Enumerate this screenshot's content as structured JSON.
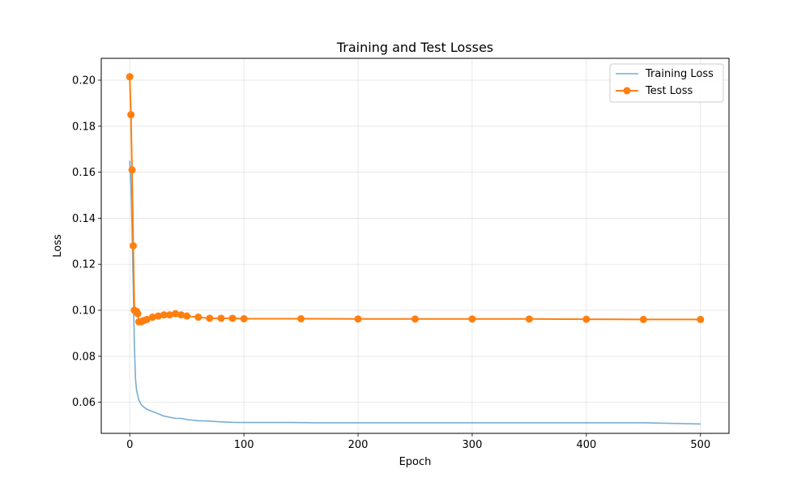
{
  "chart_data": {
    "type": "line",
    "title": "Training and Test Losses",
    "xlabel": "Epoch",
    "ylabel": "Loss",
    "xlim": [
      -25,
      525
    ],
    "ylim": [
      0.0465,
      0.2095
    ],
    "xticks": [
      0,
      100,
      200,
      300,
      400,
      500
    ],
    "yticks": [
      0.06,
      0.08,
      0.1,
      0.12,
      0.14,
      0.16,
      0.18,
      0.2
    ],
    "ytick_labels": [
      "0.06",
      "0.08",
      "0.10",
      "0.12",
      "0.14",
      "0.16",
      "0.18",
      "0.20"
    ],
    "grid": true,
    "legend_position": "top-right",
    "series": [
      {
        "name": "Training Loss",
        "color": "#1f77b4",
        "alpha": 0.6,
        "marker": "none",
        "x": [
          0,
          1,
          2,
          3,
          4,
          5,
          6,
          7,
          8,
          10,
          12,
          15,
          20,
          25,
          30,
          35,
          40,
          45,
          50,
          60,
          70,
          80,
          90,
          100,
          120,
          140,
          160,
          180,
          200,
          250,
          300,
          350,
          400,
          450,
          500
        ],
        "y": [
          0.165,
          0.155,
          0.135,
          0.11,
          0.085,
          0.07,
          0.065,
          0.063,
          0.061,
          0.059,
          0.058,
          0.057,
          0.056,
          0.055,
          0.054,
          0.0535,
          0.053,
          0.053,
          0.0525,
          0.052,
          0.0518,
          0.0515,
          0.0513,
          0.0512,
          0.0512,
          0.0512,
          0.0511,
          0.0511,
          0.0511,
          0.0511,
          0.0511,
          0.0511,
          0.0511,
          0.0511,
          0.0506
        ]
      },
      {
        "name": "Test Loss",
        "color": "#ff7f0e",
        "marker": "circle",
        "x": [
          0,
          1,
          2,
          3,
          4,
          5,
          6,
          7,
          8,
          10,
          12,
          15,
          20,
          25,
          30,
          35,
          40,
          45,
          50,
          60,
          70,
          80,
          90,
          100,
          150,
          200,
          250,
          300,
          350,
          400,
          450,
          500
        ],
        "y": [
          0.2015,
          0.185,
          0.161,
          0.128,
          0.1,
          0.0995,
          0.0995,
          0.0985,
          0.095,
          0.095,
          0.0955,
          0.096,
          0.097,
          0.0975,
          0.098,
          0.098,
          0.0985,
          0.098,
          0.0975,
          0.097,
          0.0965,
          0.0965,
          0.0965,
          0.0963,
          0.0963,
          0.0962,
          0.0962,
          0.0962,
          0.0962,
          0.0961,
          0.096,
          0.096
        ]
      }
    ]
  }
}
